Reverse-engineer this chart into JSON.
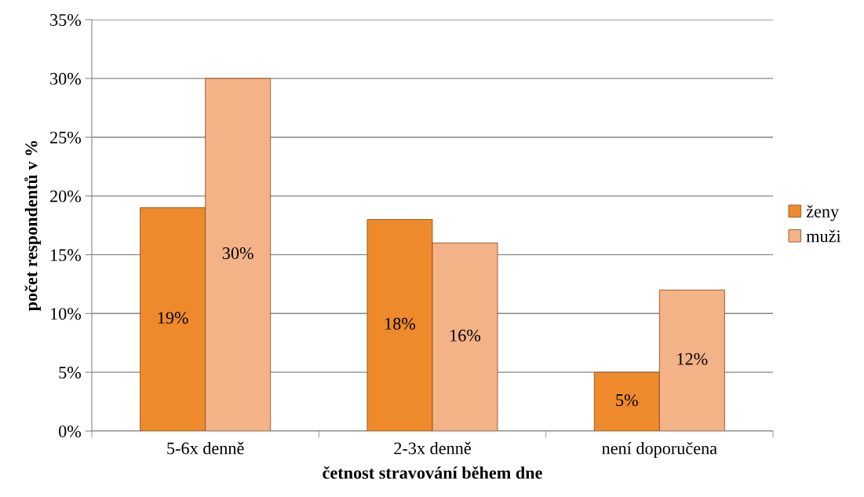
{
  "chart_data": {
    "type": "bar",
    "xlabel": "četnost stravování během dne",
    "ylabel": "počet respondentů v %",
    "categories": [
      "5-6x denně",
      "2-3x denně",
      "není doporučena"
    ],
    "series": [
      {
        "name": "ženy",
        "color": "#ef8a2c",
        "values": [
          19,
          18,
          5
        ],
        "value_labels": [
          "19%",
          "18%",
          "5%"
        ]
      },
      {
        "name": "muži",
        "color": "#f4b287",
        "values": [
          30,
          16,
          12
        ],
        "value_labels": [
          "30%",
          "16%",
          "12%"
        ]
      }
    ],
    "ylim": [
      0,
      35
    ],
    "yticks": [
      {
        "value": 0,
        "label": "0%"
      },
      {
        "value": 5,
        "label": "5%"
      },
      {
        "value": 10,
        "label": "10%"
      },
      {
        "value": 15,
        "label": "15%"
      },
      {
        "value": 20,
        "label": "20%"
      },
      {
        "value": 25,
        "label": "25%"
      },
      {
        "value": 30,
        "label": "30%"
      },
      {
        "value": 35,
        "label": "35%"
      }
    ],
    "grid": "y",
    "legend": "right"
  }
}
